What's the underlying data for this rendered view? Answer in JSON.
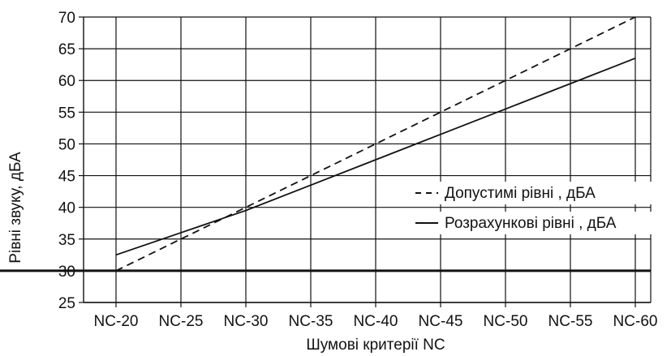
{
  "chart_data": {
    "type": "line",
    "xlabel": "Шумові критерії NC",
    "ylabel": "Рівні звуку, дБА",
    "categories": [
      "NC-20",
      "NC-25",
      "NC-30",
      "NC-35",
      "NC-40",
      "NC-45",
      "NC-50",
      "NC-55",
      "NC-60"
    ],
    "ylim": [
      25,
      70
    ],
    "yticks": [
      "25",
      "30",
      "35",
      "40",
      "45",
      "50",
      "55",
      "60",
      "65",
      "70"
    ],
    "grid": true,
    "legend_position": "right",
    "series": [
      {
        "name": "Допустимі рівні , дБА",
        "style": "dashed",
        "values": [
          30,
          35,
          40,
          45,
          50,
          55,
          60,
          65,
          70
        ]
      },
      {
        "name": "Розрахункові рівні , дБА",
        "style": "solid",
        "values": [
          32.5,
          36,
          39.5,
          43.5,
          47.5,
          51.5,
          55.5,
          59.5,
          63.5
        ]
      }
    ],
    "reference_line": {
      "y": 30
    }
  },
  "colors": {
    "line": "#111111",
    "grid": "#111111",
    "background": "#ffffff"
  }
}
